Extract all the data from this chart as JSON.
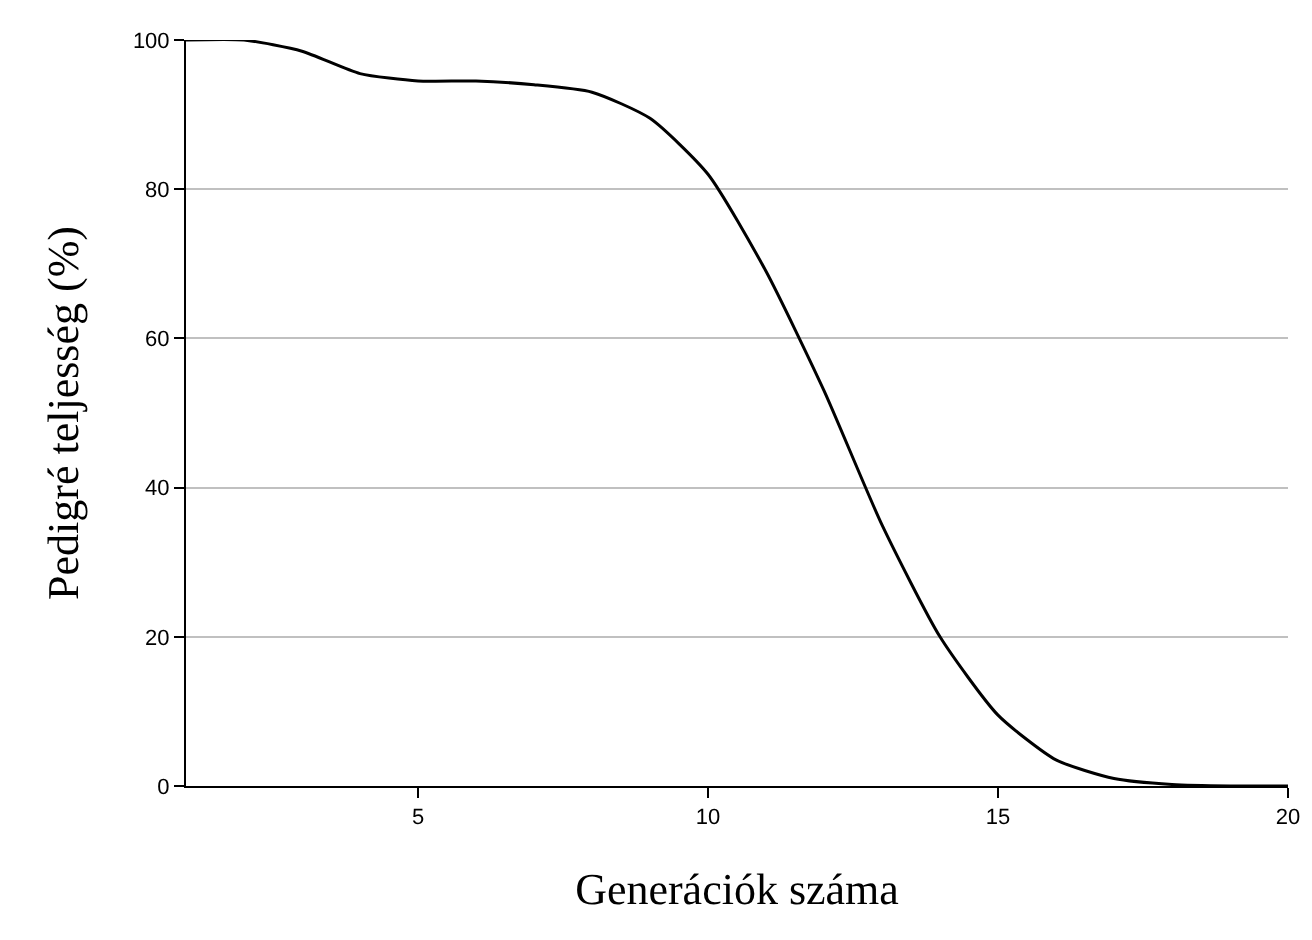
{
  "chart_data": {
    "type": "line",
    "xlabel": "Generációk száma",
    "ylabel": "Pedigré teljesség (%)",
    "x": [
      1,
      2,
      3,
      4,
      5,
      6,
      7,
      8,
      9,
      10,
      11,
      12,
      13,
      14,
      15,
      16,
      17,
      18,
      19,
      20
    ],
    "series": [
      {
        "color": "#000000",
        "values": [
          100,
          100,
          98.5,
          95.5,
          94.5,
          94.5,
          94,
          93,
          89.5,
          82,
          69,
          53,
          35,
          20,
          9.5,
          3.5,
          1,
          0.2,
          0,
          0
        ]
      }
    ],
    "xlim": [
      1,
      20
    ],
    "xticks": [
      5,
      10,
      15,
      20
    ],
    "ylim": [
      0,
      100
    ],
    "yticks": [
      0,
      20,
      40,
      60,
      80,
      100
    ],
    "grid": "y",
    "marker": "none",
    "line_style": "solid"
  }
}
